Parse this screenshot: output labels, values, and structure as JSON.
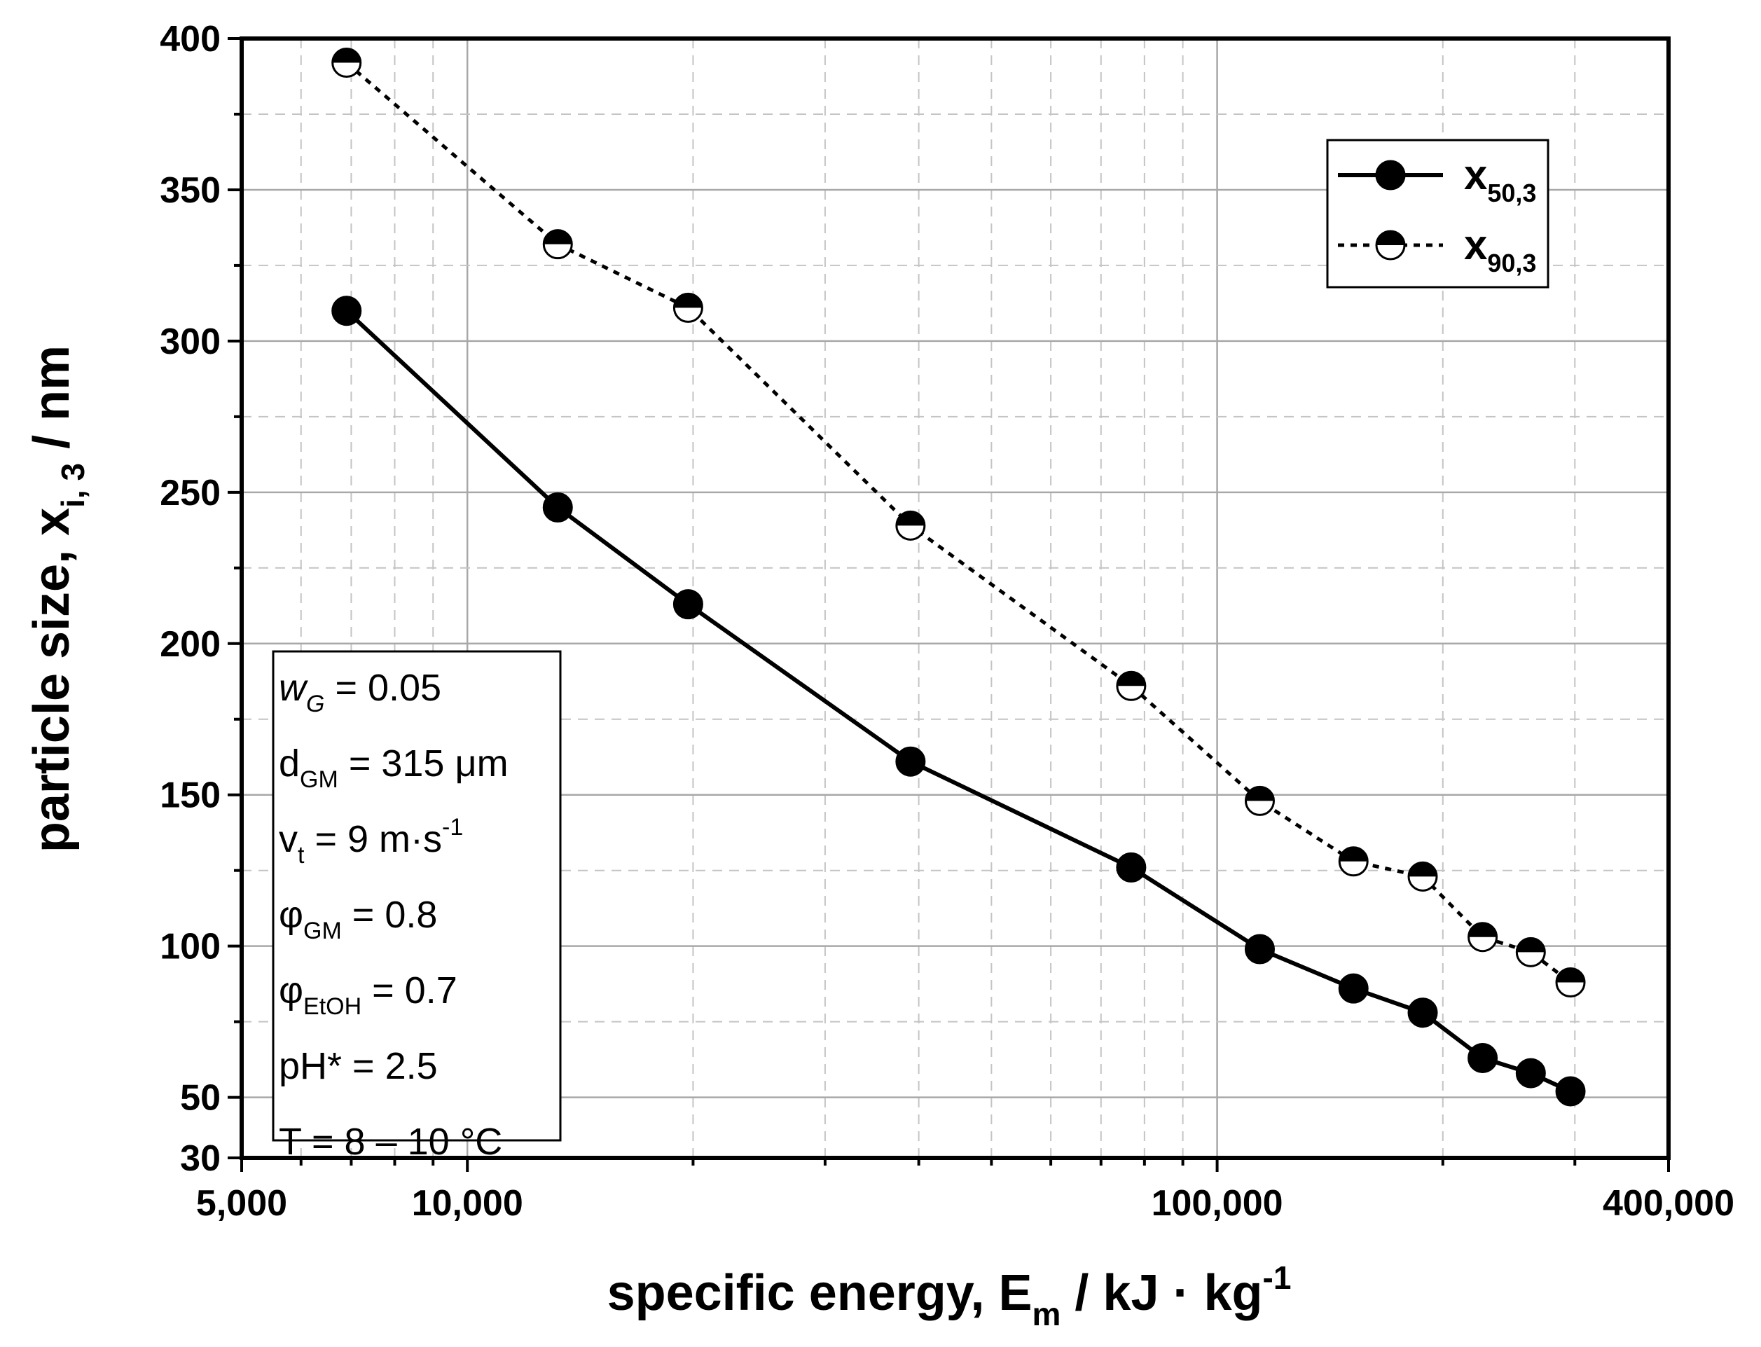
{
  "chart_data": {
    "type": "line",
    "x_scale": "log",
    "xlabel": "specific energy, E",
    "xlabel_sub": "m",
    "xlabel_unit": " / kJ · kg",
    "xlabel_sup": "-1",
    "ylabel": "particle size, x",
    "ylabel_sub": "i, 3",
    "ylabel_unit": " / nm",
    "xlim": [
      5000,
      400000
    ],
    "ylim": [
      30,
      400
    ],
    "x_ticks": [
      {
        "value": 5000,
        "label": "5,000"
      },
      {
        "value": 10000,
        "label": "10,000"
      },
      {
        "value": 100000,
        "label": "100,000"
      },
      {
        "value": 400000,
        "label": "400,000"
      }
    ],
    "y_ticks": [
      {
        "value": 30,
        "label": "30"
      },
      {
        "value": 50,
        "label": "50"
      },
      {
        "value": 100,
        "label": "100"
      },
      {
        "value": 150,
        "label": "150"
      },
      {
        "value": 200,
        "label": "200"
      },
      {
        "value": 250,
        "label": "250"
      },
      {
        "value": 300,
        "label": "300"
      },
      {
        "value": 350,
        "label": "350"
      },
      {
        "value": 400,
        "label": "400"
      }
    ],
    "y_minor_step": 25,
    "grid": true,
    "series": [
      {
        "name": "x",
        "name_sub": "50,3",
        "style": "solid",
        "marker": "filled-circle",
        "x": [
          6900,
          13200,
          19700,
          39000,
          76800,
          114000,
          152000,
          188000,
          226000,
          262000,
          296000
        ],
        "y": [
          310,
          245,
          213,
          161,
          126,
          99,
          86,
          78,
          63,
          58,
          52
        ]
      },
      {
        "name": "x",
        "name_sub": "90,3",
        "style": "dotted",
        "marker": "half-filled-circle",
        "x": [
          6900,
          13200,
          19700,
          39000,
          76800,
          114000,
          152000,
          188000,
          226000,
          262000,
          296000
        ],
        "y": [
          392,
          332,
          311,
          239,
          186,
          148,
          128,
          123,
          103,
          98,
          88
        ]
      }
    ],
    "legend_position": "top-right"
  },
  "annotation": [
    {
      "main": "w",
      "sub": "G",
      "rest": " = 0.05",
      "italic_main": true
    },
    {
      "main": "d",
      "sub": "GM",
      "rest": " = 315 μm",
      "italic_main": false
    },
    {
      "main": "v",
      "sub": "t",
      "rest": " = 9 m·s",
      "sup": "-1",
      "italic_main": false
    },
    {
      "main": "φ",
      "sub": "GM",
      "rest": " = 0.8",
      "italic_main": false
    },
    {
      "main": "φ",
      "sub": "EtOH",
      "rest": " = 0.7",
      "italic_main": false
    },
    {
      "main": "pH* = 2.5",
      "sub": "",
      "rest": "",
      "italic_main": false
    },
    {
      "main": "T = 8 – 10 °C",
      "sub": "",
      "rest": "",
      "italic_main": false
    }
  ]
}
